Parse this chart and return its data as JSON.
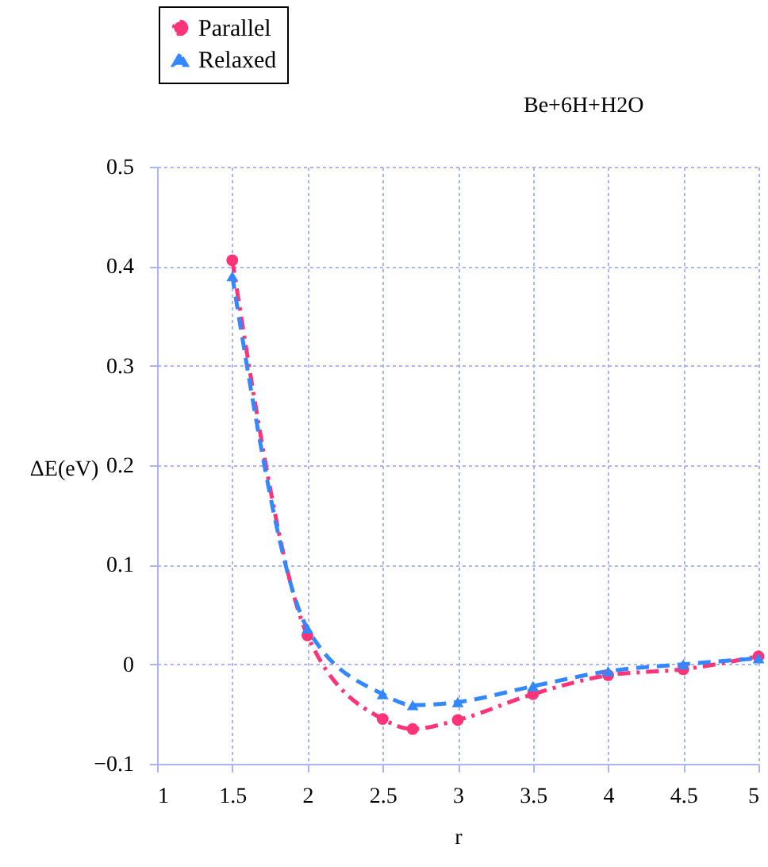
{
  "chart_data": {
    "type": "line",
    "title": "Be+6H+H2O",
    "xlabel": "r",
    "ylabel": "ΔE(eV)",
    "x": [
      1.5,
      2,
      2.5,
      2.7,
      3,
      3.5,
      4,
      4.5,
      5
    ],
    "series": [
      {
        "name": "Parallel",
        "color": "#ff3377",
        "marker": "circle",
        "line_style": "dashdot",
        "values": [
          0.406,
          0.029,
          -0.055,
          -0.065,
          -0.056,
          -0.03,
          -0.011,
          -0.005,
          0.008
        ]
      },
      {
        "name": "Relaxed",
        "color": "#3388ff",
        "marker": "triangle",
        "line_style": "dashed",
        "values": [
          0.39,
          0.036,
          -0.03,
          -0.041,
          -0.038,
          -0.022,
          -0.007,
          0.0,
          0.006
        ]
      }
    ],
    "xlim": [
      1,
      5
    ],
    "xticks": [
      1,
      1.5,
      2,
      2.5,
      3,
      3.5,
      4,
      4.5,
      5
    ],
    "ylim": [
      -0.1,
      0.5
    ],
    "yticks": [
      -0.1,
      0,
      0.1,
      0.2,
      0.3,
      0.4,
      0.5
    ],
    "grid": true,
    "legend": "top left"
  }
}
